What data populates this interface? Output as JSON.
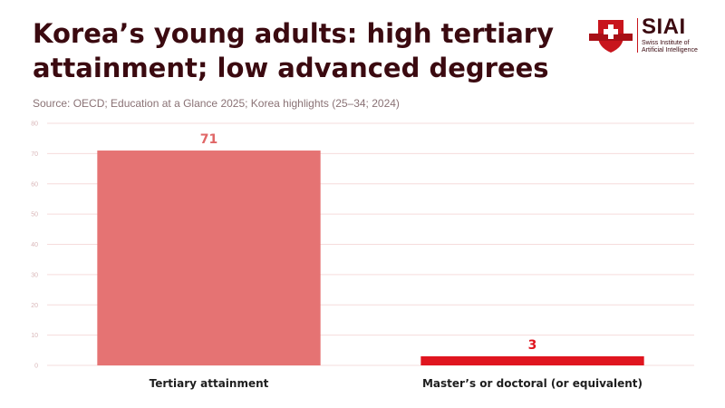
{
  "header": {
    "title": "Korea’s young adults: high tertiary attainment; low advanced degrees",
    "source": "Source: OECD; Education at a Glance 2025; Korea highlights (25–34; 2024)"
  },
  "logo": {
    "brand": "SIAI",
    "subtitle": "Swiss Institute of Artificial Intelligence",
    "brand_color": "#c8151d"
  },
  "chart_data": {
    "type": "bar",
    "categories": [
      "Tertiary attainment",
      "Master’s or doctoral (or equivalent)"
    ],
    "values": [
      71,
      3
    ],
    "bar_colors": [
      "#e57373",
      "#e0151f"
    ],
    "label_colors": [
      "#e06666",
      "#e0151f"
    ],
    "title": "Korea’s young adults: high tertiary attainment; low advanced degrees",
    "xlabel": "",
    "ylabel": "",
    "ylim": [
      0,
      80
    ],
    "yticks": [
      0,
      10,
      20,
      30,
      40,
      50,
      60,
      70,
      80
    ],
    "grid": true,
    "legend": "none"
  }
}
